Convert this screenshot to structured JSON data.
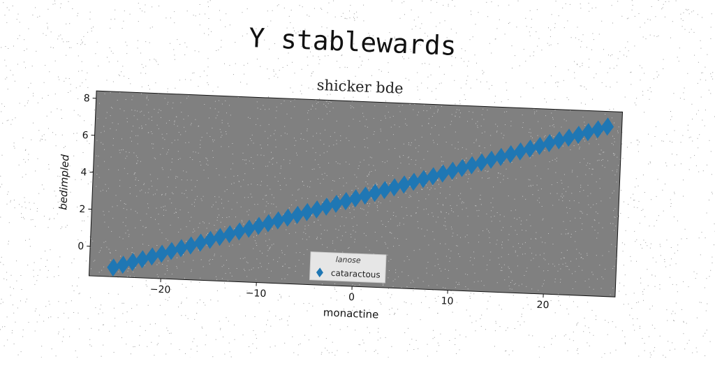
{
  "title": "Y stablewards",
  "chart_data": {
    "type": "scatter",
    "subtitle": "shicker bde",
    "xlabel": "monactine",
    "ylabel": "bedimpled",
    "xlim": [
      -27.5,
      27.5
    ],
    "ylim": [
      -1.6,
      8.4
    ],
    "xticks": [
      -20,
      -10,
      0,
      10,
      20
    ],
    "yticks": [
      0,
      2,
      4,
      6,
      8
    ],
    "xtick_labels": [
      "−20",
      "−10",
      "0",
      "10",
      "20"
    ],
    "ytick_labels": [
      "0",
      "2",
      "4",
      "6",
      "8"
    ],
    "grid": false,
    "plot_background": "#808080",
    "legend": {
      "title": "lanose",
      "location": "lower-center"
    },
    "series": [
      {
        "name": "cataractous",
        "color": "#1f77b4",
        "marker": "diamond",
        "x_start": -25,
        "x_end": 26,
        "n": 52,
        "y_start": -1.1,
        "y_end": 7.6,
        "x": [
          -25,
          -24,
          -23,
          -22,
          -21,
          -20,
          -19,
          -18,
          -17,
          -16,
          -15,
          -14,
          -13,
          -12,
          -11,
          -10,
          -9,
          -8,
          -7,
          -6,
          -5,
          -4,
          -3,
          -2,
          -1,
          0,
          1,
          2,
          3,
          4,
          5,
          6,
          7,
          8,
          9,
          10,
          11,
          12,
          13,
          14,
          15,
          16,
          17,
          18,
          19,
          20,
          21,
          22,
          23,
          24,
          25,
          26
        ],
        "y": [
          -1.1,
          -0.93,
          -0.76,
          -0.59,
          -0.42,
          -0.25,
          -0.08,
          0.09,
          0.26,
          0.43,
          0.6,
          0.78,
          0.95,
          1.12,
          1.29,
          1.46,
          1.63,
          1.8,
          1.97,
          2.14,
          2.31,
          2.48,
          2.65,
          2.82,
          2.99,
          3.16,
          3.33,
          3.5,
          3.67,
          3.84,
          4.01,
          4.18,
          4.35,
          4.52,
          4.69,
          4.86,
          5.03,
          5.2,
          5.37,
          5.54,
          5.71,
          5.88,
          6.05,
          6.22,
          6.39,
          6.56,
          6.73,
          6.9,
          7.07,
          7.24,
          7.41,
          7.58
        ]
      }
    ]
  }
}
